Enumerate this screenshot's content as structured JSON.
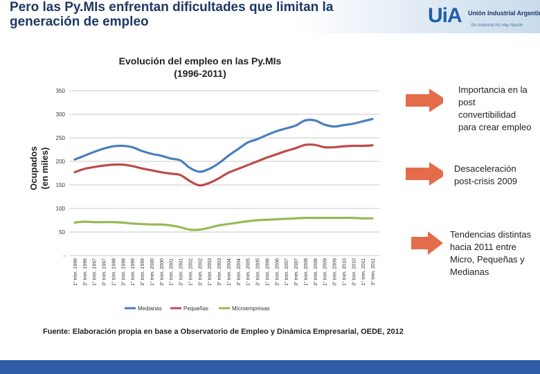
{
  "header": {
    "title": "Pero las Py.MIs enfrentan dificultades que limitan la generación de empleo",
    "logo_mark": "UiA",
    "logo_name": "Unión Industrial Argentina",
    "logo_tagline": "Sin Industria No Hay Nación"
  },
  "notes": {
    "note1": "Importancia en la post convertibilidad para crear empleo",
    "note2": "Desaceleración post-crisis 2009",
    "note3": "Tendencias distintas hacia 2011 entre Micro, Pequeñas y Medianas"
  },
  "source": "Fuente: Elaboración propia en base a Observatorio de Empleo y Dinámica Empresarial, OEDE, 2012",
  "colors": {
    "medianas": "#4a7ebb",
    "pequenas": "#be4b48",
    "micro": "#98b954",
    "arrow": "#e46c4b",
    "title": "#1f3864"
  },
  "chart_data": {
    "type": "line",
    "title": "Evolución del empleo en las Py.MIs (1996-2011)",
    "title_lines": [
      "Evolución del empleo en las Py.MIs",
      "(1996-2011)"
    ],
    "ylabel_lines": [
      "Ocupados",
      "(en miles)"
    ],
    "xlabel": "",
    "ylim": [
      0,
      350
    ],
    "yticks": [
      0,
      50,
      100,
      150,
      200,
      250,
      300,
      350
    ],
    "ytick_labels": [
      "-",
      "50",
      "100",
      "150",
      "200",
      "250",
      "300",
      "350"
    ],
    "grid": true,
    "legend": "bottom",
    "categories": [
      "1° trim. 1996",
      "3° trim. 1996",
      "1° trim. 1997",
      "3° trim. 1997",
      "1° trim. 1998",
      "3° trim. 1998",
      "1° trim. 1999",
      "3° trim. 1999",
      "1° trim. 2000",
      "3° trim. 2000",
      "1° trim. 2001",
      "3° trim. 2001",
      "1° trim. 2002",
      "3° trim. 2002",
      "1° trim. 2003",
      "3° trim. 2003",
      "1° trim. 2004",
      "3° trim. 2004",
      "1° trim. 2005",
      "3° trim. 2005",
      "1° trim. 2006",
      "3° trim. 2006",
      "1° trim. 2007",
      "3° trim. 2007",
      "1° trim. 2008",
      "3° trim. 2008",
      "1° trim. 2009",
      "3° trim. 2009",
      "1° trim. 2010",
      "3° trim. 2010",
      "1° trim. 2011",
      "3° trim. 2011"
    ],
    "series": [
      {
        "name": "Medianas",
        "values": [
          204,
          212,
          220,
          227,
          232,
          233,
          230,
          222,
          216,
          212,
          206,
          202,
          186,
          178,
          184,
          196,
          212,
          226,
          240,
          247,
          256,
          264,
          270,
          276,
          287,
          287,
          278,
          274,
          277,
          280,
          285,
          290
        ]
      },
      {
        "name": "Pequeñas",
        "values": [
          177,
          184,
          188,
          191,
          193,
          193,
          190,
          185,
          181,
          177,
          174,
          171,
          158,
          149,
          154,
          164,
          176,
          184,
          192,
          200,
          208,
          215,
          222,
          228,
          235,
          235,
          230,
          230,
          232,
          233,
          233,
          234
        ]
      },
      {
        "name": "Microempresas",
        "values": [
          70,
          72,
          71,
          71,
          71,
          70,
          68,
          67,
          66,
          66,
          64,
          60,
          55,
          55,
          59,
          64,
          67,
          70,
          73,
          75,
          76,
          77,
          78,
          79,
          80,
          80,
          80,
          80,
          80,
          80,
          79,
          79
        ]
      }
    ]
  }
}
